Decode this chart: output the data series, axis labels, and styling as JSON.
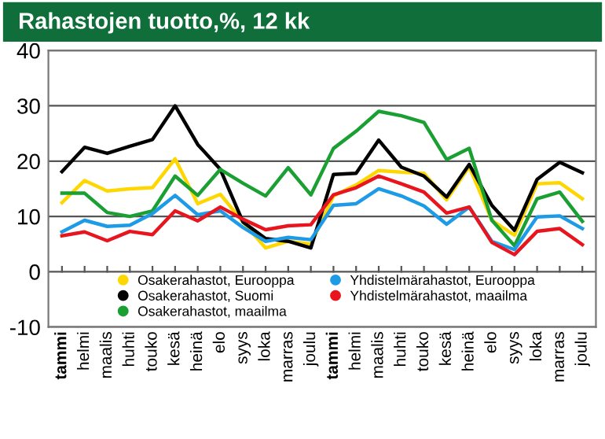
{
  "chart_data": {
    "type": "line",
    "title": "Rahastojen tuotto,%, 12 kk",
    "categories": [
      "tammi",
      "helmi",
      "maalis",
      "huhti",
      "touko",
      "kesä",
      "heinä",
      "elo",
      "syys",
      "loka",
      "marras",
      "joulu",
      "tammi",
      "helmi",
      "maalis",
      "huhti",
      "touko",
      "kesä",
      "heinä",
      "elo",
      "syys",
      "loka",
      "marras",
      "joulu"
    ],
    "series": [
      {
        "name": "Osakerahastot, Eurooppa",
        "color": "#ffd700",
        "values": [
          12.5,
          16.5,
          14.6,
          15,
          15.2,
          20.4,
          12.3,
          14,
          9,
          4.3,
          5.5,
          5,
          13.7,
          15.7,
          18.3,
          18,
          17.8,
          13,
          19,
          9.3,
          6.6,
          15.9,
          16.1,
          13.2
        ]
      },
      {
        "name": "Osakerahastot, Suomi",
        "color": "#000000",
        "values": [
          18.1,
          22.5,
          21.4,
          22.7,
          23.9,
          30,
          23,
          18.5,
          9,
          6,
          5.5,
          4.3,
          17.6,
          17.8,
          23.8,
          18.9,
          17.3,
          13.5,
          19.4,
          12,
          7.5,
          16.7,
          19.8,
          17.9
        ]
      },
      {
        "name": "Osakerahastot, maailma",
        "color": "#1aa032",
        "values": [
          14.2,
          14.2,
          10.7,
          10,
          11,
          17.3,
          13.8,
          18.5,
          16,
          13.7,
          18.8,
          13.9,
          22.3,
          25.4,
          29,
          28.2,
          27,
          20.3,
          22.3,
          9.3,
          4.7,
          13.2,
          14.4,
          9.1
        ]
      },
      {
        "name": "Yhdistelmärahastot, Eurooppa",
        "color": "#1e9be6",
        "values": [
          7.2,
          9.3,
          8.2,
          8.4,
          10.5,
          13.8,
          10.3,
          11,
          8,
          5.5,
          6.2,
          5.8,
          12,
          12.3,
          15,
          13.7,
          11.9,
          8.6,
          11.7,
          5.5,
          4,
          9.9,
          10.1,
          7.8
        ]
      },
      {
        "name": "Yhdistelmärahastot, maailma",
        "color": "#e8141e",
        "values": [
          6.5,
          7.2,
          5.6,
          7.3,
          6.7,
          11,
          9.2,
          11.7,
          9.5,
          7.6,
          8.3,
          8.5,
          13.9,
          15.2,
          17.3,
          15.9,
          14.4,
          10.6,
          11.7,
          5.3,
          3.1,
          7.3,
          7.8,
          4.9
        ]
      }
    ],
    "ylim": [
      -10,
      40
    ],
    "yticks": [
      -10,
      0,
      10,
      20,
      30,
      40
    ],
    "grid": "y",
    "legend": "bottom",
    "marker": "none",
    "line_style": "solid"
  }
}
